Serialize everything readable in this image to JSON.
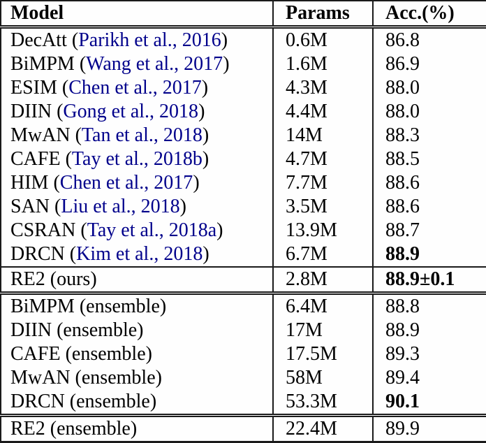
{
  "table": {
    "columns": [
      {
        "label": "Model"
      },
      {
        "label": "Params"
      },
      {
        "label": "Acc.(%)"
      }
    ],
    "colors": {
      "citation_link": "#00008B",
      "border": "#1a1a1a",
      "text": "#000000",
      "background": "#fefefe"
    },
    "sections": [
      {
        "divider_after": "single",
        "rows": [
          {
            "model": "DecAtt",
            "citation": "Parikh et al., 2016",
            "params": "0.6M",
            "acc": "86.8",
            "acc_bold": false
          },
          {
            "model": "BiMPM",
            "citation": "Wang et al., 2017",
            "params": "1.6M",
            "acc": "86.9",
            "acc_bold": false
          },
          {
            "model": "ESIM",
            "citation": "Chen et al., 2017",
            "params": "4.3M",
            "acc": "88.0",
            "acc_bold": false
          },
          {
            "model": "DIIN",
            "citation": "Gong et al., 2018",
            "params": "4.4M",
            "acc": "88.0",
            "acc_bold": false
          },
          {
            "model": "MwAN",
            "citation": "Tan et al., 2018",
            "params": "14M",
            "acc": "88.3",
            "acc_bold": false
          },
          {
            "model": "CAFE",
            "citation": "Tay et al., 2018b",
            "params": "4.7M",
            "acc": "88.5",
            "acc_bold": false
          },
          {
            "model": "HIM",
            "citation": "Chen et al., 2017",
            "params": "7.7M",
            "acc": "88.6",
            "acc_bold": false
          },
          {
            "model": "SAN",
            "citation": "Liu et al., 2018",
            "params": "3.5M",
            "acc": "88.6",
            "acc_bold": false
          },
          {
            "model": "CSRAN",
            "citation": "Tay et al., 2018a",
            "params": "13.9M",
            "acc": "88.7",
            "acc_bold": false
          },
          {
            "model": "DRCN",
            "citation": "Kim et al., 2018",
            "params": "6.7M",
            "acc": "88.9",
            "acc_bold": true
          }
        ]
      },
      {
        "divider_after": "double",
        "rows": [
          {
            "model": "RE2 (ours)",
            "citation": null,
            "params": "2.8M",
            "acc": "88.9±0.1",
            "acc_bold": true
          }
        ]
      },
      {
        "divider_after": "double",
        "rows": [
          {
            "model": "BiMPM (ensemble)",
            "citation": null,
            "params": "6.4M",
            "acc": "88.8",
            "acc_bold": false
          },
          {
            "model": "DIIN (ensemble)",
            "citation": null,
            "params": "17M",
            "acc": "88.9",
            "acc_bold": false
          },
          {
            "model": "CAFE (ensemble)",
            "citation": null,
            "params": "17.5M",
            "acc": "89.3",
            "acc_bold": false
          },
          {
            "model": "MwAN (ensemble)",
            "citation": null,
            "params": "58M",
            "acc": "89.4",
            "acc_bold": false
          },
          {
            "model": "DRCN (ensemble)",
            "citation": null,
            "params": "53.3M",
            "acc": "90.1",
            "acc_bold": true
          }
        ]
      },
      {
        "divider_after": "none",
        "rows": [
          {
            "model": "RE2 (ensemble)",
            "citation": null,
            "params": "22.4M",
            "acc": "89.9",
            "acc_bold": false
          }
        ]
      }
    ]
  }
}
